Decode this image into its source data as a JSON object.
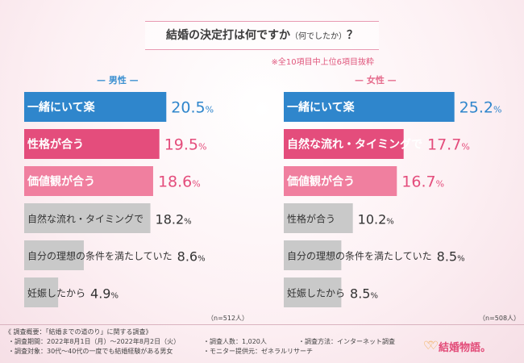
{
  "title": "結婚の決定打は何ですか",
  "title_sub": "（何でしたか）",
  "title_end": "？",
  "subnote": "※全10項目中上位6項目抜粋",
  "chart_data": [
    {
      "type": "bar",
      "orientation": "horizontal",
      "title": "男性",
      "categories": [
        "一緒にいて楽",
        "性格が合う",
        "価値観が合う",
        "自然な流れ・タイミングで",
        "自分の理想の条件を満たしていた",
        "妊娠したから"
      ],
      "values": [
        20.5,
        19.5,
        18.6,
        18.2,
        8.6,
        4.9
      ],
      "value_labels": [
        "20.5",
        "19.5",
        "18.6",
        "18.2",
        "8.6",
        "4.9"
      ],
      "unit": "%",
      "colors": [
        "#2f86cc",
        "#e44d7c",
        "#f07f9f",
        "#c9c9c9",
        "#c9c9c9",
        "#c9c9c9"
      ],
      "n_label": "（n=512人）"
    },
    {
      "type": "bar",
      "orientation": "horizontal",
      "title": "女性",
      "categories": [
        "一緒にいて楽",
        "自然な流れ・タイミングで",
        "価値観が合う",
        "性格が合う",
        "自分の理想の条件を満たしていた",
        "妊娠したから"
      ],
      "values": [
        25.2,
        17.7,
        16.7,
        10.2,
        8.5,
        8.5
      ],
      "value_labels": [
        "25.2",
        "17.7",
        "16.7",
        "10.2",
        "8.5",
        "8.5"
      ],
      "unit": "%",
      "colors": [
        "#2f86cc",
        "#e44d7c",
        "#f07f9f",
        "#c9c9c9",
        "#c9c9c9",
        "#c9c9c9"
      ],
      "n_label": "（n=508人）"
    }
  ],
  "footer": {
    "heading": "《 調査概要：「結婚までの道のり」に関する調査》",
    "period": "・調査期間：2022年8月1日（月）～2022年8月2日（火）",
    "count": "・調査人数：1,020人",
    "method": "・調査方法：インターネット調査",
    "target": "・調査対象：30代～40代の一度でも結婚経験がある男女",
    "provider": "・モニター提供元：ゼネラルリサーチ"
  },
  "logo": "結婚物語。"
}
